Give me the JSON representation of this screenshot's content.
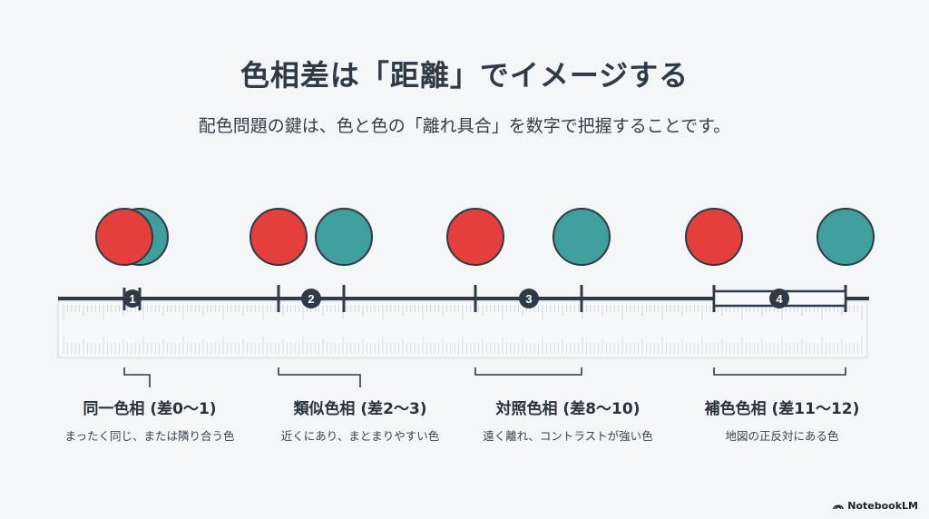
{
  "title": "色相差は「距離」でイメージする",
  "subtitle": "配色問題の鍵は、色と色の「離れ具合」を数字で把握することです。",
  "colors": {
    "red": "#e23f3d",
    "teal": "#3f9f9c",
    "ruler_line": "#2f3a46"
  },
  "categories": [
    {
      "number": "1",
      "label": "同一色相 (差0〜1)",
      "description": "まったく同じ、または隣り合う色"
    },
    {
      "number": "2",
      "label": "類似色相 (差2〜3)",
      "description": "近くにあり、まとまりやすい色"
    },
    {
      "number": "3",
      "label": "対照色相 (差8〜10)",
      "description": "遠く離れ、コントラストが強い色"
    },
    {
      "number": "4",
      "label": "補色色相 (差11〜12)",
      "description": "地図の正反対にある色"
    }
  ],
  "brand": "NotebookLM"
}
